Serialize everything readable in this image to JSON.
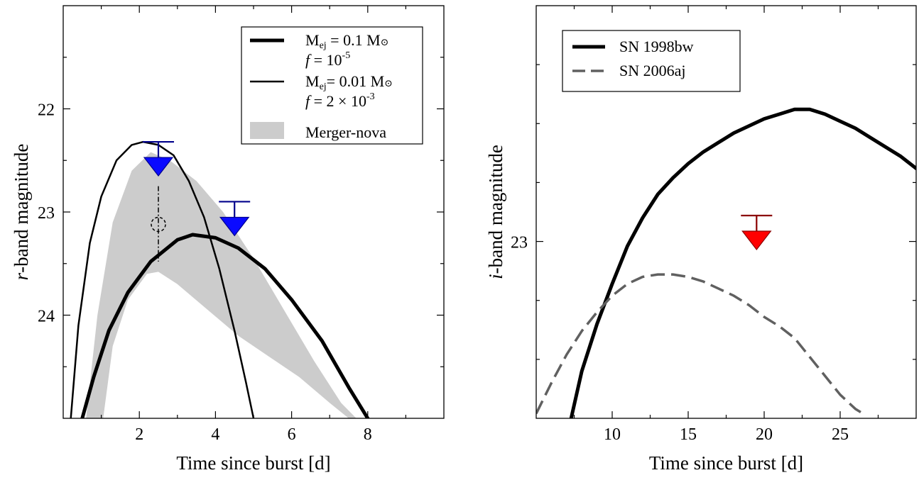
{
  "chart_data": [
    {
      "type": "line",
      "xlabel": "Time since burst [d]",
      "ylabel_italic": "r",
      "ylabel_rest": "-band magnitude",
      "xlim": [
        0,
        10
      ],
      "ylim": [
        25,
        21
      ],
      "y_inverted": true,
      "xticks": [
        2,
        4,
        6,
        8
      ],
      "yticks": [
        22,
        23,
        24
      ],
      "legend": {
        "position": "top-right",
        "entries": [
          {
            "style": "thick-line",
            "line1_pre": "M",
            "line1_sub": "ej",
            "line1_post": " = 0.1 M",
            "line1_sym": "⊙",
            "line2_pre": "f",
            "line2_post": " = 10",
            "line2_sup": "-5"
          },
          {
            "style": "thin-line",
            "line1_pre": "M",
            "line1_sub": "ej",
            "line1_post": "= 0.01 M",
            "line1_sym": "⊙",
            "line2_pre": "f",
            "line2_post": " = 2 × 10",
            "line2_sup": "-3"
          },
          {
            "style": "band",
            "label": "Merger-nova"
          }
        ]
      },
      "series": [
        {
          "style": "thick",
          "color": "#000000",
          "x": [
            0.5,
            0.8,
            1.2,
            1.7,
            2.3,
            3.0,
            3.4,
            4.0,
            4.6,
            5.3,
            6.0,
            6.8,
            7.5,
            8.0
          ],
          "y": [
            25.0,
            24.6,
            24.15,
            23.78,
            23.48,
            23.27,
            23.22,
            23.25,
            23.35,
            23.55,
            23.85,
            24.25,
            24.7,
            25.0
          ]
        },
        {
          "style": "thin",
          "color": "#000000",
          "x": [
            0.2,
            0.4,
            0.7,
            1.0,
            1.4,
            1.8,
            2.1,
            2.5,
            2.9,
            3.3,
            3.7,
            4.1,
            4.5,
            4.8,
            5.0
          ],
          "y": [
            25.0,
            24.1,
            23.3,
            22.85,
            22.5,
            22.35,
            22.32,
            22.35,
            22.45,
            22.7,
            23.05,
            23.55,
            24.15,
            24.65,
            25.0
          ]
        }
      ],
      "band": {
        "color": "#cccccc",
        "upper_x": [
          0.6,
          0.9,
          1.3,
          1.8,
          2.3,
          2.8,
          3.5,
          4.2,
          5.0,
          5.8,
          6.6,
          7.3,
          7.7
        ],
        "upper_y": [
          25.0,
          24.0,
          23.1,
          22.6,
          22.42,
          22.5,
          22.7,
          23.0,
          23.45,
          23.95,
          24.45,
          24.85,
          25.0
        ],
        "lower_x": [
          1.05,
          1.3,
          1.7,
          2.2,
          2.5,
          3.0,
          3.8,
          4.6,
          5.4,
          6.2,
          7.0,
          7.5
        ],
        "lower_y": [
          25.0,
          24.3,
          23.85,
          23.6,
          23.58,
          23.7,
          23.95,
          24.2,
          24.4,
          24.6,
          24.85,
          25.0
        ]
      },
      "upper_limits": [
        {
          "x": 2.5,
          "y": 22.32,
          "color": "#0a0aff",
          "bar": "#00008b"
        },
        {
          "x": 4.5,
          "y": 22.9,
          "color": "#0a0aff",
          "bar": "#00008b"
        }
      ],
      "detection": {
        "x": 2.5,
        "y": 23.12,
        "err_low": 22.75,
        "err_high": 23.48
      }
    },
    {
      "type": "line",
      "xlabel": "Time since burst [d]",
      "ylabel_italic": "i",
      "ylabel_rest": "-band magnitude",
      "xlim": [
        5,
        30
      ],
      "ylim": [
        23.75,
        22.0
      ],
      "y_inverted": true,
      "xticks": [
        10,
        15,
        20,
        25
      ],
      "yticks": [
        23
      ],
      "legend": {
        "position": "top-left",
        "entries": [
          {
            "style": "thick-line",
            "label": "SN 1998bw"
          },
          {
            "style": "dashed-line",
            "label": "SN 2006aj"
          }
        ]
      },
      "series": [
        {
          "name": "SN 1998bw",
          "style": "thick",
          "color": "#000000",
          "x": [
            7.3,
            8.0,
            9.0,
            10.0,
            11.0,
            12.0,
            13.0,
            14.0,
            15.0,
            16.0,
            17.0,
            18.0,
            19.0,
            20.0,
            21.0,
            22.0,
            22.5,
            23.0,
            24.0,
            25.0,
            26.0,
            27.0,
            28.0,
            29.0,
            30.0
          ],
          "y": [
            23.75,
            23.55,
            23.35,
            23.18,
            23.02,
            22.9,
            22.8,
            22.73,
            22.67,
            22.62,
            22.58,
            22.54,
            22.51,
            22.48,
            22.46,
            22.44,
            22.44,
            22.44,
            22.46,
            22.49,
            22.52,
            22.56,
            22.6,
            22.64,
            22.69
          ]
        },
        {
          "name": "SN 2006aj",
          "style": "dashed",
          "color": "#606060",
          "x": [
            5.0,
            6.0,
            7.0,
            8.0,
            9.0,
            10.0,
            11.0,
            12.0,
            13.0,
            14.0,
            15.0,
            16.0,
            17.0,
            18.0,
            19.0,
            20.0,
            21.0,
            22.0,
            23.0,
            24.0,
            25.0,
            26.0,
            26.5
          ],
          "y": [
            23.73,
            23.6,
            23.48,
            23.38,
            23.3,
            23.23,
            23.18,
            23.15,
            23.14,
            23.14,
            23.15,
            23.17,
            23.2,
            23.23,
            23.27,
            23.32,
            23.36,
            23.41,
            23.49,
            23.57,
            23.65,
            23.71,
            23.73
          ]
        }
      ],
      "upper_limits": [
        {
          "x": 19.5,
          "y": 22.89,
          "color": "#ff0000",
          "bar": "#8b0000"
        }
      ]
    }
  ]
}
